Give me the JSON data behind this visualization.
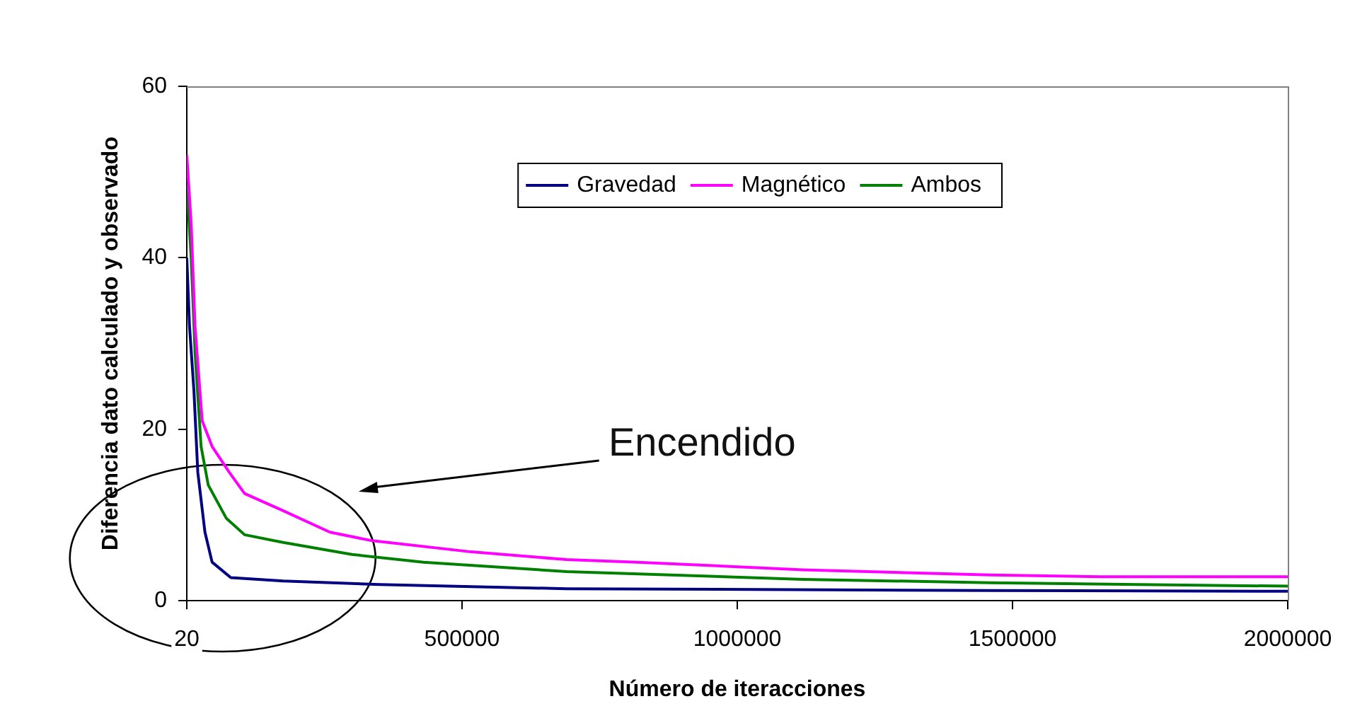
{
  "chart_data": {
    "type": "line",
    "xlabel": "Número de iteracciones",
    "ylabel": "Diferencia dato calculado y observado",
    "xlim": [
      20,
      2000000
    ],
    "xticks": [
      20,
      500000,
      1000000,
      1500000,
      2000000
    ],
    "ylim": [
      0,
      60
    ],
    "yticks": [
      0,
      20,
      40,
      60
    ],
    "grid": false,
    "legend": "top",
    "marker": "none",
    "line_style": "solid",
    "annotations": [
      "Encendido"
    ],
    "series": [
      {
        "name": "Gravedad",
        "color": "#000080",
        "x": [
          20,
          5000,
          13000,
          20000,
          33000,
          46000,
          80000,
          175000,
          350000,
          690000,
          1460000,
          2000000
        ],
        "values": [
          40,
          32,
          24.5,
          15,
          8,
          4.5,
          2.7,
          2.3,
          1.9,
          1.4,
          1.2,
          1.1
        ]
      },
      {
        "name": "Magnético",
        "color": "#ff00ff",
        "x": [
          20,
          8000,
          15000,
          28000,
          46000,
          77000,
          105000,
          175000,
          260000,
          337000,
          517000,
          690000,
          818000,
          1120000,
          1460000,
          1660000,
          2000000
        ],
        "values": [
          52,
          44,
          32,
          21,
          18,
          15,
          12.5,
          10.5,
          8,
          7,
          5.7,
          4.8,
          4.5,
          3.6,
          3,
          2.8,
          2.8
        ]
      },
      {
        "name": "Ambos",
        "color": "#008000",
        "x": [
          20,
          8000,
          15000,
          26000,
          39000,
          72000,
          105000,
          175000,
          300000,
          430000,
          690000,
          1120000,
          1460000,
          2000000
        ],
        "values": [
          48.5,
          40,
          29,
          18,
          13.5,
          9.6,
          7.7,
          6.8,
          5.4,
          4.5,
          3.4,
          2.5,
          2.1,
          1.7
        ]
      }
    ]
  }
}
